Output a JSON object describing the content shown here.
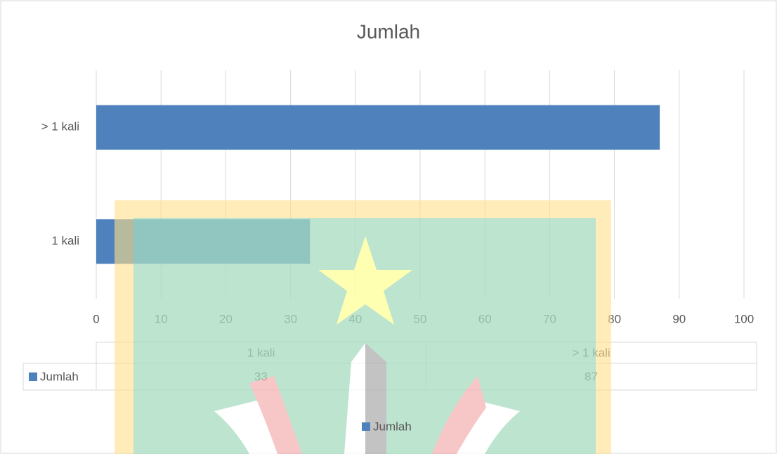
{
  "chart_data": {
    "type": "bar",
    "orientation": "horizontal",
    "title": "Jumlah",
    "categories": [
      "1 kali",
      "> 1 kali"
    ],
    "series": [
      {
        "name": "Jumlah",
        "color": "#4f81bd",
        "values": [
          33,
          87
        ]
      }
    ],
    "xlim": [
      0,
      100
    ],
    "xticks": [
      0,
      10,
      20,
      30,
      40,
      50,
      60,
      70,
      80,
      90,
      100
    ],
    "grid": true,
    "data_table": true,
    "legend": "bottom"
  }
}
